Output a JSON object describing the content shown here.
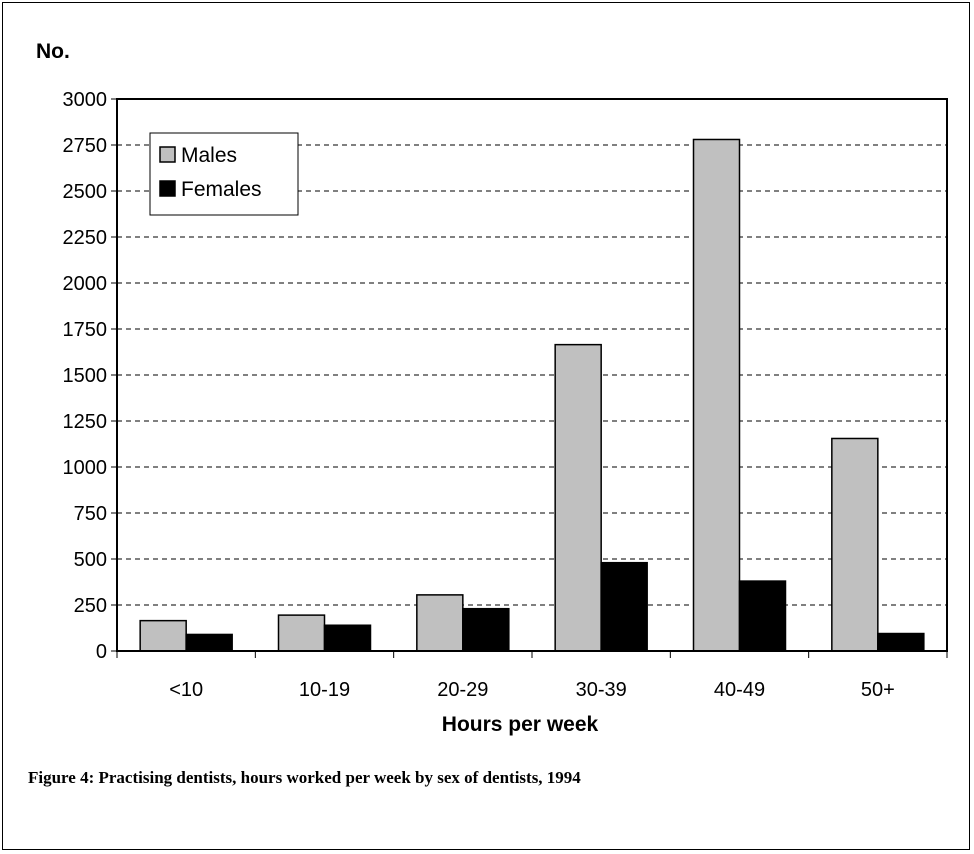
{
  "caption": "Figure 4: Practising dentists, hours worked per week by sex of dentists, 1994",
  "chart_data": {
    "type": "bar",
    "title": "",
    "ylabel": "No.",
    "xlabel": "Hours per week",
    "categories": [
      "<10",
      "10-19",
      "20-29",
      "30-39",
      "40-49",
      "50+"
    ],
    "series": [
      {
        "name": "Males",
        "values": [
          165,
          195,
          305,
          1665,
          2780,
          1155
        ],
        "color": "#c0c0c0"
      },
      {
        "name": "Females",
        "values": [
          90,
          140,
          230,
          480,
          380,
          95
        ],
        "color": "#000000"
      }
    ],
    "ylim": [
      0,
      3000
    ],
    "yticks": [
      0,
      250,
      500,
      750,
      1000,
      1250,
      1500,
      1750,
      2000,
      2250,
      2500,
      2750,
      3000
    ],
    "grid": "horizontal-dashed",
    "legend_position": "top-left"
  }
}
